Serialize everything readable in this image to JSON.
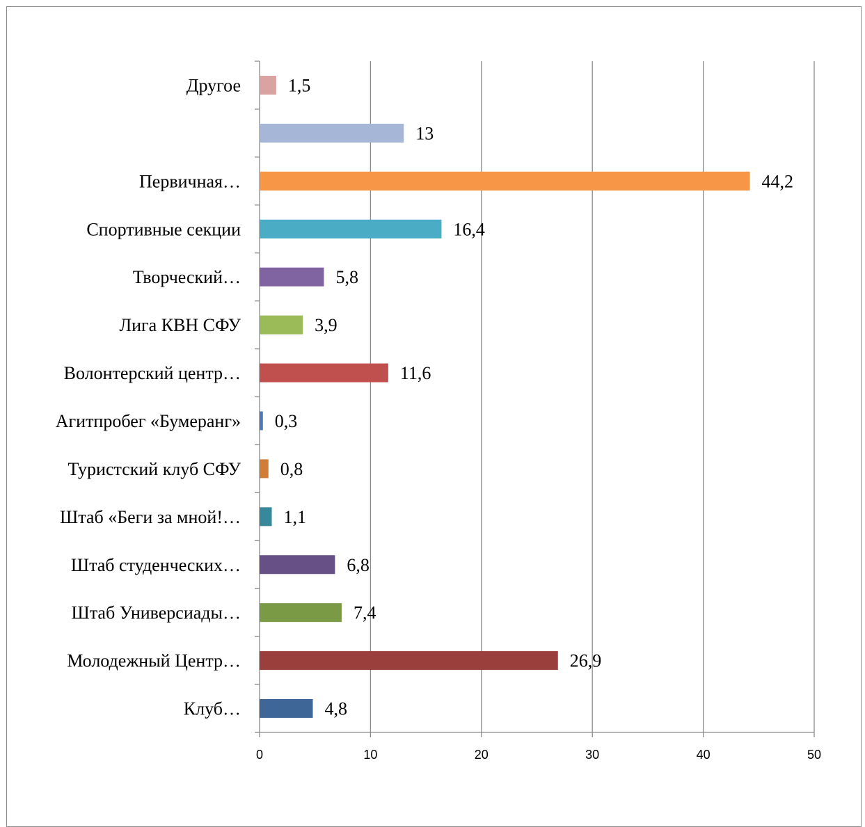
{
  "chart_data": {
    "type": "bar",
    "orientation": "horizontal",
    "title": "",
    "xlabel": "",
    "ylabel": "",
    "xlim": [
      0,
      50
    ],
    "ticks": [
      "0",
      "10",
      "20",
      "30",
      "40",
      "50"
    ],
    "grid": true,
    "legend": "none",
    "categories": [
      "Клуб…",
      "Молодежный Центр…",
      "Штаб Универсиады…",
      "Штаб студенческих…",
      "Штаб «Беги за мной!…",
      "Туристский клуб СФУ",
      "Агитпробег «Бумеранг»",
      "Волонтерский центр…",
      "Лига КВН СФУ",
      "Творческий…",
      "Спортивные секции",
      "Первичная…",
      "",
      "Другое"
    ],
    "values": [
      4.8,
      26.9,
      7.4,
      6.8,
      1.1,
      0.8,
      0.3,
      11.6,
      3.9,
      5.8,
      16.4,
      44.2,
      13,
      1.5
    ],
    "value_labels": [
      "4,8",
      "26,9",
      "7,4",
      "6,8",
      "1,1",
      "0,8",
      "0,3",
      "11,6",
      "3,9",
      "5,8",
      "16,4",
      "44,2",
      "13",
      "1,5"
    ],
    "colors": [
      "#3e6697",
      "#9b3f3d",
      "#7b9a45",
      "#665085",
      "#36889a",
      "#d17d37",
      "#4a7bb7",
      "#c0504d",
      "#9bbb59",
      "#8064a2",
      "#4bacc6",
      "#f79646",
      "#a5b6d6",
      "#d9a3a2"
    ]
  }
}
